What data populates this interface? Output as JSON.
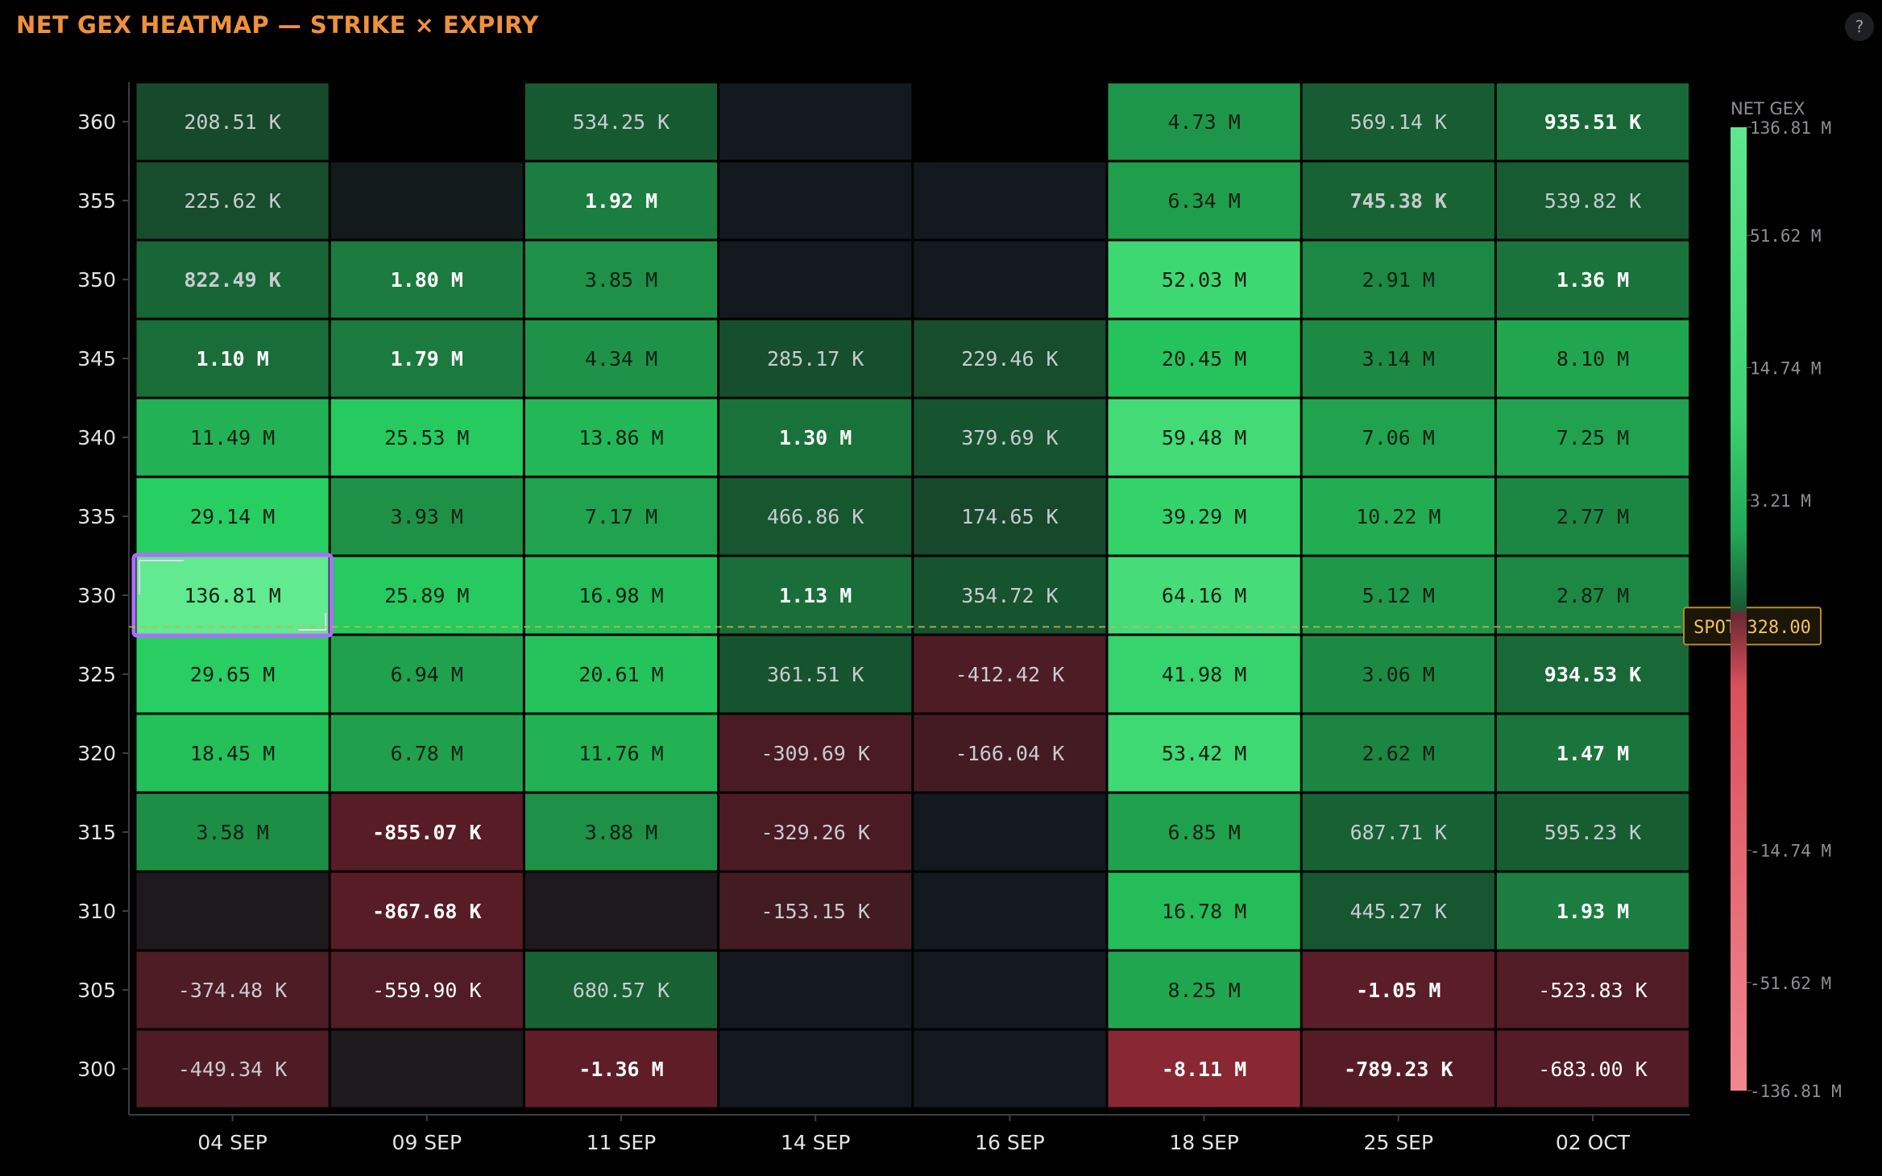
{
  "header": {
    "title": "NET GEX HEATMAP — STRIKE × EXPIRY",
    "help_label": "?"
  },
  "colors": {
    "background": "#000000",
    "title": "#f0913a",
    "positive_max": "#5fe88e",
    "negative_max": "#f2868f",
    "empty_cell_pos": "#131a1b",
    "empty_cell_neg": "#1e191d",
    "spot_line": "#c7b84a",
    "selection": "#b06cff"
  },
  "chart_data": {
    "type": "heatmap",
    "title": "NET GEX HEATMAP — STRIKE × EXPIRY",
    "x_categories": [
      "04 SEP",
      "09 SEP",
      "11 SEP",
      "14 SEP",
      "16 SEP",
      "18 SEP",
      "25 SEP",
      "02 OCT"
    ],
    "y_categories": [
      360,
      355,
      350,
      345,
      340,
      335,
      330,
      325,
      320,
      315,
      310,
      305,
      300
    ],
    "cells": [
      [
        "208.51 K",
        null,
        "534.25 K",
        "",
        null,
        "4.73 M",
        "569.14 K",
        "935.51 K"
      ],
      [
        "225.62 K",
        "",
        "1.92 M",
        "",
        "",
        "6.34 M",
        "745.38 K",
        "539.82 K"
      ],
      [
        "822.49 K",
        "1.80 M",
        "3.85 M",
        "",
        "",
        "52.03 M",
        "2.91 M",
        "1.36 M"
      ],
      [
        "1.10 M",
        "1.79 M",
        "4.34 M",
        "285.17 K",
        "229.46 K",
        "20.45 M",
        "3.14 M",
        "8.10 M"
      ],
      [
        "11.49 M",
        "25.53 M",
        "13.86 M",
        "1.30 M",
        "379.69 K",
        "59.48 M",
        "7.06 M",
        "7.25 M"
      ],
      [
        "29.14 M",
        "3.93 M",
        "7.17 M",
        "466.86 K",
        "174.65 K",
        "39.29 M",
        "10.22 M",
        "2.77 M"
      ],
      [
        "136.81 M",
        "25.89 M",
        "16.98 M",
        "1.13 M",
        "354.72 K",
        "64.16 M",
        "5.12 M",
        "2.87 M"
      ],
      [
        "29.65 M",
        "6.94 M",
        "20.61 M",
        "361.51 K",
        "-412.42 K",
        "41.98 M",
        "3.06 M",
        "934.53 K"
      ],
      [
        "18.45 M",
        "6.78 M",
        "11.76 M",
        "-309.69 K",
        "-166.04 K",
        "53.42 M",
        "2.62 M",
        "1.47 M"
      ],
      [
        "3.58 M",
        "-855.07 K",
        "3.88 M",
        "-329.26 K",
        "",
        "6.85 M",
        "687.71 K",
        "595.23 K"
      ],
      [
        "",
        "-867.68 K",
        "",
        "-153.15 K",
        "",
        "16.78 M",
        "445.27 K",
        "1.93 M"
      ],
      [
        "-374.48 K",
        "-559.90 K",
        "680.57 K",
        "",
        "",
        "8.25 M",
        "-1.05 M",
        "-523.83 K"
      ],
      [
        "-449.34 K",
        "",
        "-1.36 M",
        "",
        "",
        "-8.11 M",
        "-789.23 K",
        "-683.00 K"
      ]
    ],
    "selected_cell": {
      "strike": 330,
      "expiry": "04 SEP"
    },
    "spot": {
      "label": "SPOT 328.00",
      "value": 328.0
    },
    "legend": {
      "title": "NET GEX",
      "ticks": [
        {
          "label": "136.81 M",
          "value": 136.81
        },
        {
          "label": "51.62 M",
          "value": 51.62
        },
        {
          "label": "14.74 M",
          "value": 14.74
        },
        {
          "label": "3.21 M",
          "value": 3.21
        },
        {
          "label": "-14.74 M",
          "value": -14.74
        },
        {
          "label": "-51.62 M",
          "value": -51.62
        },
        {
          "label": "-136.81 M",
          "value": -136.81
        }
      ]
    }
  }
}
